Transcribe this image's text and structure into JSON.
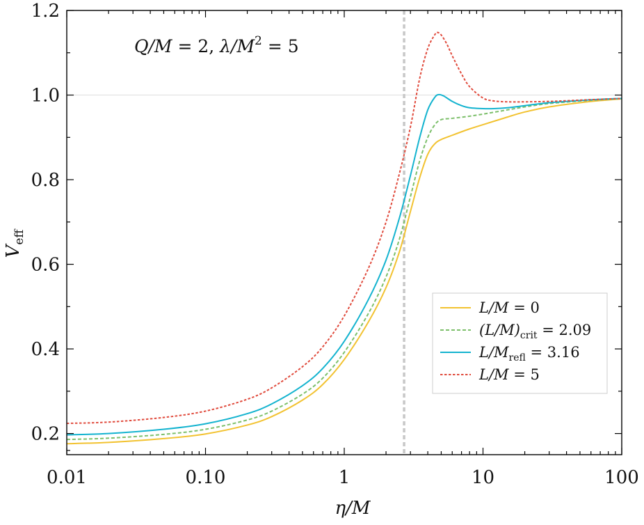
{
  "chart_data": {
    "type": "line",
    "annotation": {
      "lhs1": "Q/M",
      "rhs1": " = 2, ",
      "lhs2": "λ/M",
      "sup": "2",
      "rhs2": " = 5"
    },
    "xlabel": {
      "main": "η/M"
    },
    "ylabel": {
      "main": "V",
      "sub": "eff"
    },
    "x_scale": "log",
    "xlim": [
      0.01,
      100
    ],
    "ylim": [
      0.15,
      1.2
    ],
    "x_ticks": [
      {
        "value": 0.01,
        "label": "0.01"
      },
      {
        "value": 0.1,
        "label": "0.10"
      },
      {
        "value": 1,
        "label": "1"
      },
      {
        "value": 10,
        "label": "10"
      },
      {
        "value": 100,
        "label": "100"
      }
    ],
    "y_ticks": [
      {
        "value": 0.2,
        "label": "0.2"
      },
      {
        "value": 0.4,
        "label": "0.4"
      },
      {
        "value": 0.6,
        "label": "0.6"
      },
      {
        "value": 0.8,
        "label": "0.8"
      },
      {
        "value": 1.0,
        "label": "1.0"
      },
      {
        "value": 1.2,
        "label": "1.2"
      }
    ],
    "reference_lines": {
      "horizontal": {
        "y": 1.0,
        "color": "#dddddd"
      },
      "vertical": {
        "x": 2.7,
        "color": "#c8c8c8"
      }
    },
    "legend_position": "lower-right",
    "series": [
      {
        "name": "L/M = 0",
        "legend": {
          "pre": "L/M",
          "sub": "",
          "post": " = 0"
        },
        "color": "#f2c230",
        "dash": "solid",
        "x": [
          0.01,
          0.02,
          0.05,
          0.1,
          0.2,
          0.3,
          0.5,
          0.7,
          1.0,
          1.5,
          2.0,
          2.5,
          3.0,
          3.5,
          4.0,
          4.5,
          5.0,
          6.0,
          8.0,
          10,
          15,
          20,
          30,
          50,
          70,
          100
        ],
        "y": [
          0.176,
          0.179,
          0.188,
          0.199,
          0.22,
          0.24,
          0.279,
          0.316,
          0.375,
          0.465,
          0.545,
          0.63,
          0.725,
          0.805,
          0.86,
          0.885,
          0.895,
          0.905,
          0.92,
          0.93,
          0.948,
          0.96,
          0.972,
          0.982,
          0.987,
          0.991
        ]
      },
      {
        "name": "(L/M)crit = 2.09",
        "legend": {
          "pre": "(L/M)",
          "sub": "crit",
          "post": " = 2.09"
        },
        "color": "#7cbf6a",
        "dash": "dashed",
        "x": [
          0.01,
          0.02,
          0.05,
          0.1,
          0.2,
          0.3,
          0.5,
          0.7,
          1.0,
          1.5,
          2.0,
          2.5,
          3.0,
          3.5,
          4.0,
          4.5,
          5.0,
          6.0,
          8.0,
          10,
          15,
          20,
          30,
          50,
          70,
          100
        ],
        "y": [
          0.186,
          0.189,
          0.198,
          0.21,
          0.232,
          0.253,
          0.293,
          0.331,
          0.392,
          0.485,
          0.57,
          0.66,
          0.76,
          0.845,
          0.9,
          0.93,
          0.942,
          0.945,
          0.95,
          0.955,
          0.965,
          0.972,
          0.98,
          0.986,
          0.989,
          0.992
        ]
      },
      {
        "name": "L/Mrefl = 3.16",
        "legend": {
          "pre": "L/M",
          "sub": "refl",
          "post": " = 3.16"
        },
        "color": "#13b3cf",
        "dash": "solid",
        "x": [
          0.01,
          0.02,
          0.05,
          0.1,
          0.2,
          0.3,
          0.5,
          0.7,
          1.0,
          1.5,
          2.0,
          2.5,
          3.0,
          3.5,
          4.0,
          4.5,
          4.8,
          5.2,
          6.0,
          7.0,
          8.0,
          10,
          12,
          15,
          20,
          30,
          50,
          70,
          100
        ],
        "y": [
          0.197,
          0.2,
          0.21,
          0.223,
          0.247,
          0.27,
          0.313,
          0.354,
          0.418,
          0.518,
          0.61,
          0.71,
          0.81,
          0.9,
          0.965,
          0.995,
          1.001,
          0.998,
          0.985,
          0.975,
          0.97,
          0.968,
          0.968,
          0.97,
          0.975,
          0.982,
          0.987,
          0.99,
          0.992
        ]
      },
      {
        "name": "L/M = 5",
        "legend": {
          "pre": "L/M",
          "sub": "",
          "post": " = 5"
        },
        "color": "#e04a3c",
        "dash": "dotted",
        "x": [
          0.01,
          0.02,
          0.05,
          0.1,
          0.2,
          0.3,
          0.5,
          0.7,
          1.0,
          1.5,
          2.0,
          2.5,
          3.0,
          3.5,
          4.0,
          4.5,
          4.7,
          5.0,
          5.5,
          6.0,
          7.0,
          8.0,
          10,
          12,
          15,
          20,
          30,
          50,
          70,
          100
        ],
        "y": [
          0.224,
          0.227,
          0.238,
          0.253,
          0.281,
          0.308,
          0.358,
          0.405,
          0.478,
          0.592,
          0.7,
          0.815,
          0.925,
          1.04,
          1.11,
          1.143,
          1.148,
          1.142,
          1.12,
          1.093,
          1.05,
          1.02,
          0.993,
          0.986,
          0.984,
          0.984,
          0.985,
          0.988,
          0.99,
          0.992
        ]
      }
    ]
  }
}
